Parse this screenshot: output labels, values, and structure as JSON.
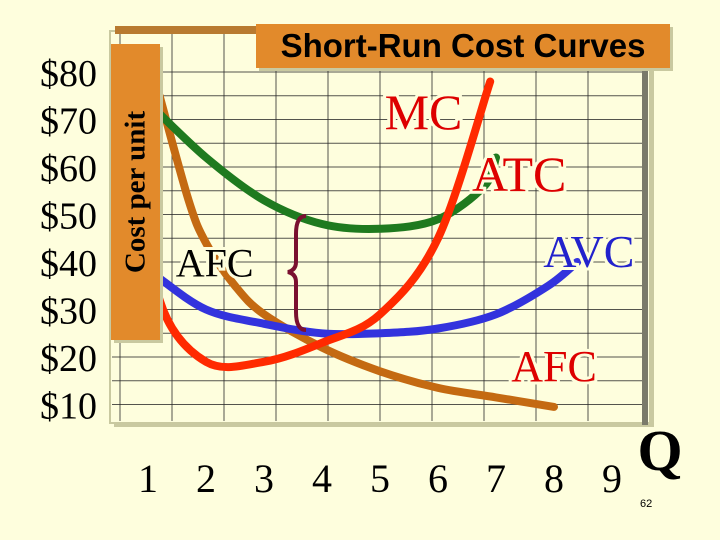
{
  "title": "Short-Run Cost Curves",
  "ylabel": "Cost per unit",
  "xlabel": "Q",
  "page_number": "62",
  "colors": {
    "background": "#fefedd",
    "accent_box": "#e28a2b",
    "mc": "#ff2a00",
    "atc": "#1f7a1f",
    "avc": "#3333dd",
    "afc": "#c46a12",
    "label_red": "#dd0000",
    "label_blue": "#2222cc",
    "brace": "#7a1030"
  },
  "chart_data": {
    "type": "line",
    "title": "Short-Run Cost Curves",
    "ylabel": "Cost per unit",
    "xlabel": "Q",
    "x_ticks": [
      "1",
      "2",
      "3",
      "4",
      "5",
      "6",
      "7",
      "8",
      "9"
    ],
    "y_ticks": [
      "$80",
      "$70",
      "$60",
      "$50",
      "$40",
      "$30",
      "$20",
      "$10"
    ],
    "xlim": [
      0.8,
      9.8
    ],
    "ylim": [
      6,
      85
    ],
    "grid": true,
    "series": [
      {
        "name": "MC",
        "label": "MC",
        "color": "#ff2a00",
        "points": [
          [
            0.9,
            62
          ],
          [
            1.2,
            32
          ],
          [
            2.0,
            19
          ],
          [
            3.0,
            19
          ],
          [
            4.0,
            23
          ],
          [
            5.0,
            29
          ],
          [
            6.0,
            45
          ],
          [
            6.9,
            78
          ]
        ]
      },
      {
        "name": "ATC",
        "label": "ATC",
        "color": "#1f7a1f",
        "points": [
          [
            1.05,
            73
          ],
          [
            2.0,
            62
          ],
          [
            3.0,
            53
          ],
          [
            4.0,
            48
          ],
          [
            5.0,
            47
          ],
          [
            6.0,
            49
          ],
          [
            6.8,
            56
          ],
          [
            7.0,
            62
          ]
        ]
      },
      {
        "name": "AVC",
        "label": "AVC",
        "color": "#3333dd",
        "points": [
          [
            1.15,
            37
          ],
          [
            2.0,
            30
          ],
          [
            3.0,
            27
          ],
          [
            4.0,
            25
          ],
          [
            5.0,
            25
          ],
          [
            6.0,
            26
          ],
          [
            7.0,
            29
          ],
          [
            7.9,
            35
          ],
          [
            8.4,
            40
          ]
        ]
      },
      {
        "name": "AFC",
        "label": "AFC",
        "color": "#c46a12",
        "points": [
          [
            1.2,
            75
          ],
          [
            1.7,
            53
          ],
          [
            2.0,
            44
          ],
          [
            2.5,
            35
          ],
          [
            3.0,
            29
          ],
          [
            4.0,
            22
          ],
          [
            5.0,
            17
          ],
          [
            6.0,
            13.5
          ],
          [
            7.0,
            11.5
          ],
          [
            8.0,
            9.5
          ]
        ]
      }
    ],
    "annotations": [
      {
        "text": "MC",
        "x": 5.75,
        "y": 68
      },
      {
        "text": "ATC",
        "x": 7.4,
        "y": 55
      },
      {
        "text": "AVC",
        "x": 8.6,
        "y": 39
      },
      {
        "text": "AFC",
        "x": 8.0,
        "y": 15
      },
      {
        "text": "AFC",
        "x": 2.15,
        "y": 37
      }
    ]
  }
}
